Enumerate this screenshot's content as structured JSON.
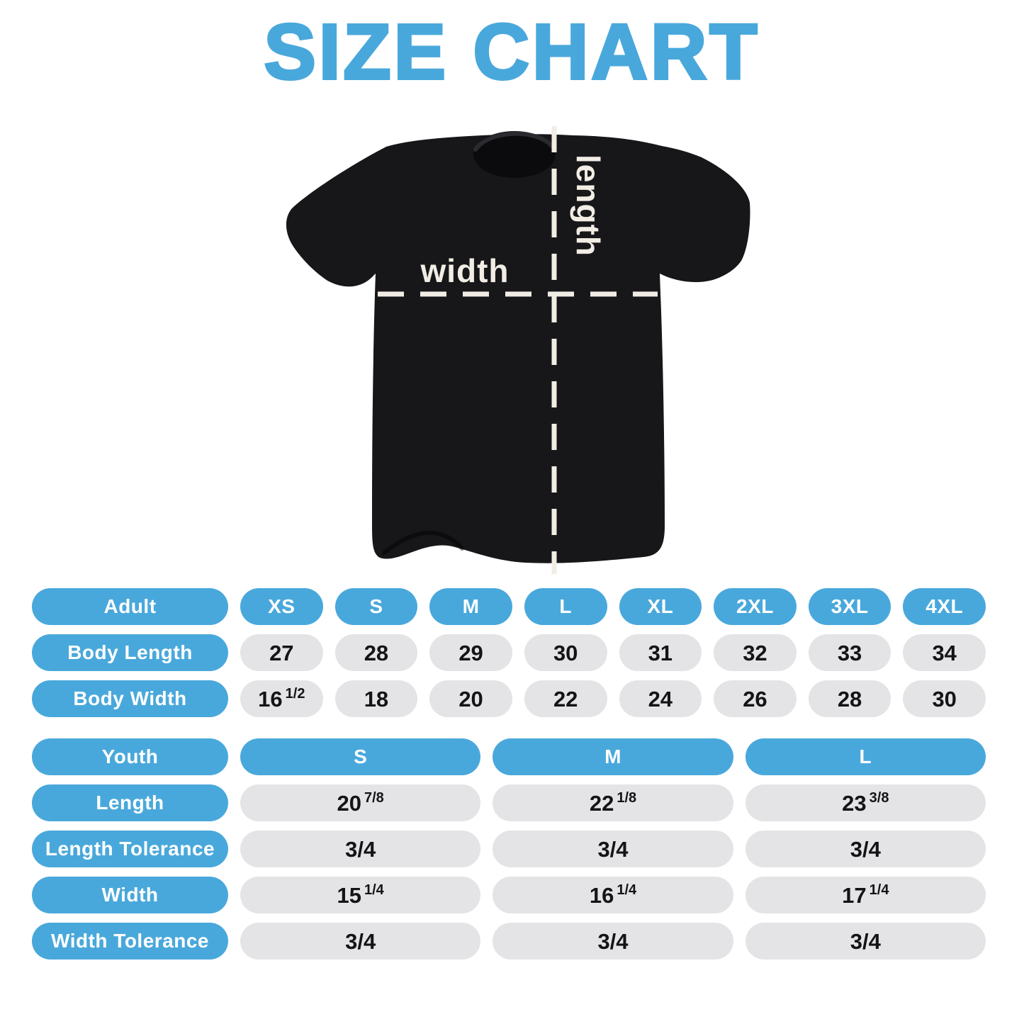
{
  "title": "SIZE CHART",
  "colors": {
    "accent_blue": "#49A8DB",
    "pill_gray": "#E4E4E6",
    "value_ink": "#141416",
    "shirt_black": "#17171A",
    "dash_cream": "#F2EDE4"
  },
  "shirt_diagram": {
    "width_label": "width",
    "length_label": "length"
  },
  "chart_data": [
    {
      "type": "table",
      "name": "adult-size-table",
      "corner_label": "Adult",
      "column_headers": [
        "XS",
        "S",
        "M",
        "L",
        "XL",
        "2XL",
        "3XL",
        "4XL"
      ],
      "rows": [
        {
          "label": "Body Length",
          "values": [
            "27",
            "28",
            "29",
            "30",
            "31",
            "32",
            "33",
            "34"
          ]
        },
        {
          "label": "Body Width",
          "values": [
            "16 1/2",
            "18",
            "20",
            "22",
            "24",
            "26",
            "28",
            "30"
          ]
        }
      ]
    },
    {
      "type": "table",
      "name": "youth-size-table",
      "corner_label": "Youth",
      "column_headers": [
        "S",
        "M",
        "L"
      ],
      "rows": [
        {
          "label": "Length",
          "values": [
            "20 7/8",
            "22 1/8",
            "23 3/8"
          ]
        },
        {
          "label": "Length Tolerance",
          "values": [
            "3/4",
            "3/4",
            "3/4"
          ]
        },
        {
          "label": "Width",
          "values": [
            "15 1/4",
            "16 1/4",
            "17 1/4"
          ]
        },
        {
          "label": "Width Tolerance",
          "values": [
            "3/4",
            "3/4",
            "3/4"
          ]
        }
      ]
    }
  ]
}
